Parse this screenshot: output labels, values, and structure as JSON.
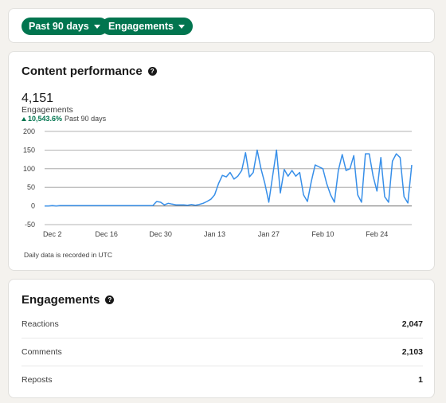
{
  "filters": {
    "range_label": "Past 90 days",
    "metric_label": "Engagements"
  },
  "performance": {
    "title": "Content performance",
    "total_value": "4,151",
    "total_label": "Engagements",
    "change_value": "10,543.6%",
    "change_period": "Past 90 days",
    "note": "Daily data is recorded in UTC"
  },
  "chart_data": {
    "type": "line",
    "title": "",
    "xlabel": "",
    "ylabel": "",
    "ylim": [
      -50,
      200
    ],
    "yticks": [
      200,
      150,
      100,
      50,
      0,
      -50
    ],
    "xtick_labels": [
      "Dec 2",
      "Dec 16",
      "Dec 30",
      "Jan 13",
      "Jan 27",
      "Feb 10",
      "Feb 24"
    ],
    "x_start": "Nov 30",
    "grid": true,
    "color": "#378fe9",
    "values": [
      0,
      0,
      1,
      0,
      1,
      1,
      1,
      1,
      1,
      1,
      1,
      1,
      1,
      1,
      1,
      1,
      1,
      1,
      1,
      1,
      1,
      1,
      1,
      1,
      1,
      1,
      1,
      1,
      1,
      12,
      10,
      3,
      7,
      5,
      3,
      3,
      3,
      2,
      4,
      2,
      4,
      7,
      12,
      18,
      30,
      60,
      82,
      78,
      90,
      72,
      80,
      95,
      143,
      78,
      90,
      150,
      100,
      60,
      10,
      80,
      150,
      35,
      98,
      80,
      95,
      80,
      90,
      30,
      12,
      65,
      110,
      105,
      100,
      60,
      30,
      10,
      95,
      138,
      95,
      100,
      135,
      30,
      10,
      140,
      140,
      80,
      40,
      130,
      25,
      10,
      120,
      140,
      130,
      25,
      8,
      110
    ]
  },
  "engagements": {
    "title": "Engagements",
    "rows": [
      {
        "label": "Reactions",
        "value": "2,047"
      },
      {
        "label": "Comments",
        "value": "2,103"
      },
      {
        "label": "Reposts",
        "value": "1"
      }
    ]
  }
}
